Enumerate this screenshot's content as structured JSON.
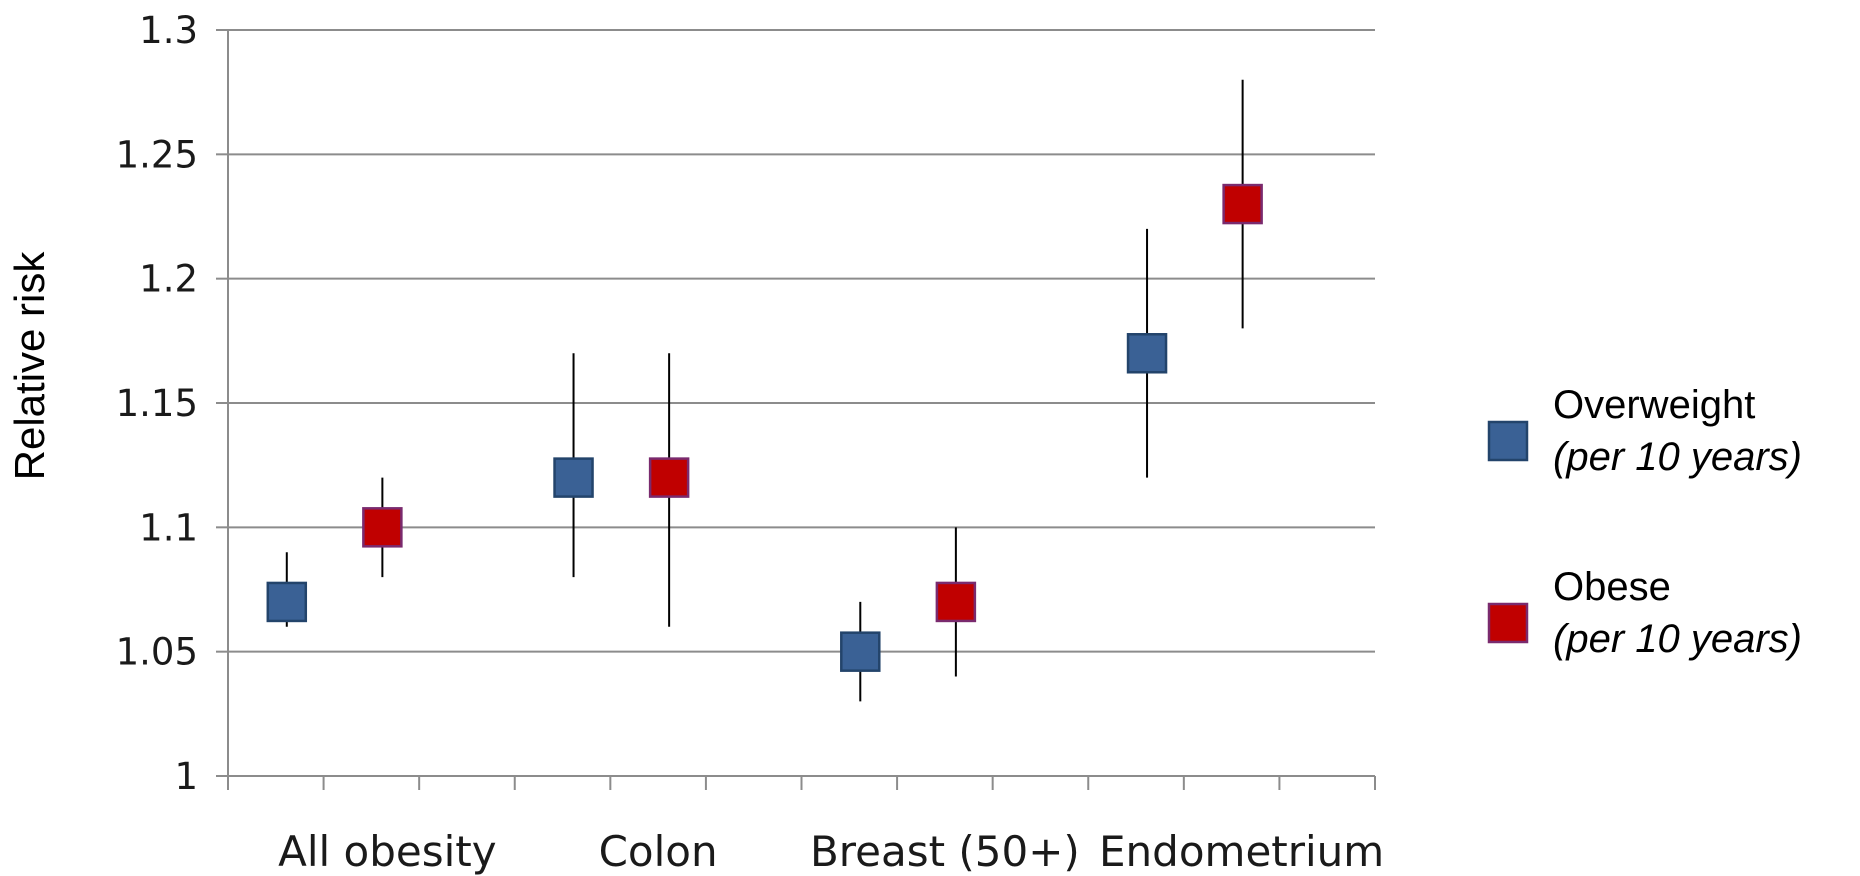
{
  "chart_data": {
    "type": "scatter",
    "title": "",
    "xlabel": "",
    "ylabel": "Relative risk",
    "ylim": [
      1,
      1.3
    ],
    "yticks": [
      "1",
      "1.05",
      "1.1",
      "1.15",
      "1.2",
      "1.25",
      "1.3"
    ],
    "grid": true,
    "legend_position": "right",
    "categories": [
      "All obesity",
      "Colon",
      "Breast (50+)",
      "Endometrium"
    ],
    "series": [
      {
        "name": "Overweight",
        "subtitle": "(per 10 years)",
        "color": "#3a6195",
        "values": [
          1.07,
          1.12,
          1.05,
          1.17
        ],
        "lower": [
          1.06,
          1.08,
          1.03,
          1.12
        ],
        "upper": [
          1.09,
          1.17,
          1.07,
          1.22
        ]
      },
      {
        "name": "Obese",
        "subtitle": "(per 10 years)",
        "color": "#c00000",
        "values": [
          1.1,
          1.12,
          1.07,
          1.23
        ],
        "lower": [
          1.08,
          1.06,
          1.04,
          1.18
        ],
        "upper": [
          1.12,
          1.17,
          1.1,
          1.28
        ]
      }
    ]
  }
}
